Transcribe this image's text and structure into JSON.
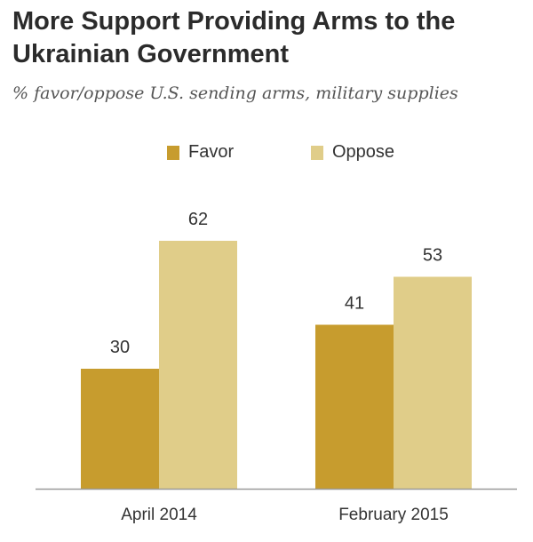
{
  "title": "More Support Providing Arms to the Ukrainian Government",
  "subtitle": "% favor/oppose U.S. sending arms, military supplies",
  "colors": {
    "favor": "#c79c2e",
    "oppose": "#e0cd89",
    "axis": "#9a9a9a"
  },
  "chart_data": {
    "type": "bar",
    "title": "More Support Providing Arms to the Ukrainian Government",
    "subtitle": "% favor/oppose U.S. sending arms, military supplies",
    "categories": [
      "April 2014",
      "February 2015"
    ],
    "series": [
      {
        "name": "Favor",
        "values": [
          30,
          41
        ]
      },
      {
        "name": "Oppose",
        "values": [
          62,
          53
        ]
      }
    ],
    "ylim": [
      0,
      70
    ],
    "grid": false,
    "legend": "top-center"
  }
}
